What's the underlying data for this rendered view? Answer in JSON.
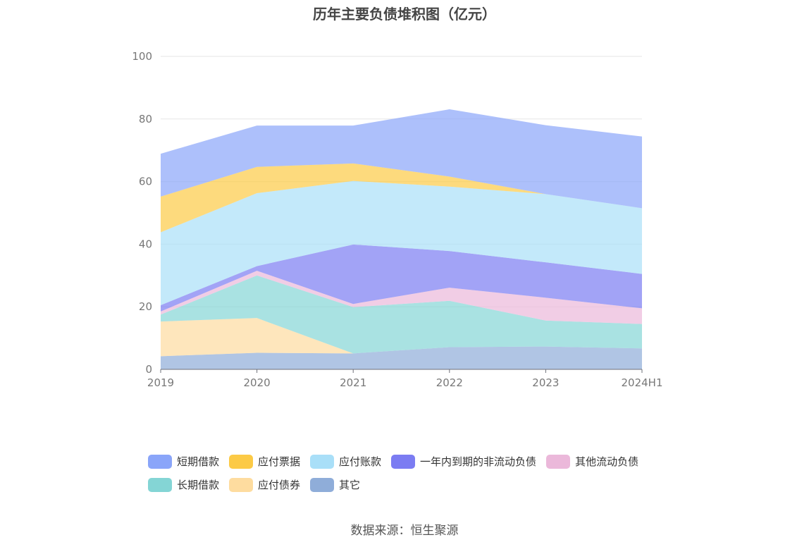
{
  "title": "历年主要负债堆积图（亿元）",
  "source": "数据来源：恒生聚源",
  "chart_data": {
    "type": "area",
    "stacked": true,
    "categories": [
      "2019",
      "2020",
      "2021",
      "2022",
      "2023",
      "2024H1"
    ],
    "ylim": [
      0,
      100
    ],
    "yticks": [
      0,
      20,
      40,
      60,
      80,
      100
    ],
    "grid": true,
    "legend_position": "bottom",
    "series": [
      {
        "name": "其它",
        "color": "#8fadd9",
        "values": [
          4.2,
          5.3,
          5.1,
          7.1,
          7.3,
          6.7
        ]
      },
      {
        "name": "应付债券",
        "color": "#fedc9f",
        "values": [
          11.1,
          11.1,
          0.0,
          0.0,
          0.0,
          0.0
        ]
      },
      {
        "name": "长期借款",
        "color": "#84d5d5",
        "values": [
          2.2,
          13.6,
          14.8,
          14.8,
          8.3,
          7.8
        ]
      },
      {
        "name": "其他流动负债",
        "color": "#ebb8da",
        "values": [
          1.0,
          1.5,
          1.0,
          4.2,
          7.3,
          5.0
        ]
      },
      {
        "name": "一年内到期的非流动负债",
        "color": "#7b7cf2",
        "values": [
          2.0,
          1.5,
          19.0,
          11.7,
          11.3,
          11.0
        ]
      },
      {
        "name": "应付账款",
        "color": "#a9dff8",
        "values": [
          23.3,
          23.3,
          20.3,
          20.6,
          21.8,
          21.0
        ]
      },
      {
        "name": "应付票据",
        "color": "#fcca46",
        "values": [
          11.4,
          8.4,
          5.6,
          3.2,
          0.0,
          0.0
        ]
      },
      {
        "name": "短期借款",
        "color": "#8aa5f9",
        "values": [
          13.7,
          13.2,
          12.1,
          21.5,
          22.0,
          22.9
        ]
      }
    ]
  },
  "legend": {
    "row1": [
      {
        "label": "短期借款",
        "color": "#8aa5f9"
      },
      {
        "label": "应付票据",
        "color": "#fcca46"
      },
      {
        "label": "应付账款",
        "color": "#a9dff8"
      },
      {
        "label": "一年内到期的非流动负债",
        "color": "#7b7cf2"
      },
      {
        "label": "其他流动负债",
        "color": "#ebb8da"
      }
    ],
    "row2": [
      {
        "label": "长期借款",
        "color": "#84d5d5"
      },
      {
        "label": "应付债券",
        "color": "#fedc9f"
      },
      {
        "label": "其它",
        "color": "#8fadd9"
      }
    ]
  }
}
